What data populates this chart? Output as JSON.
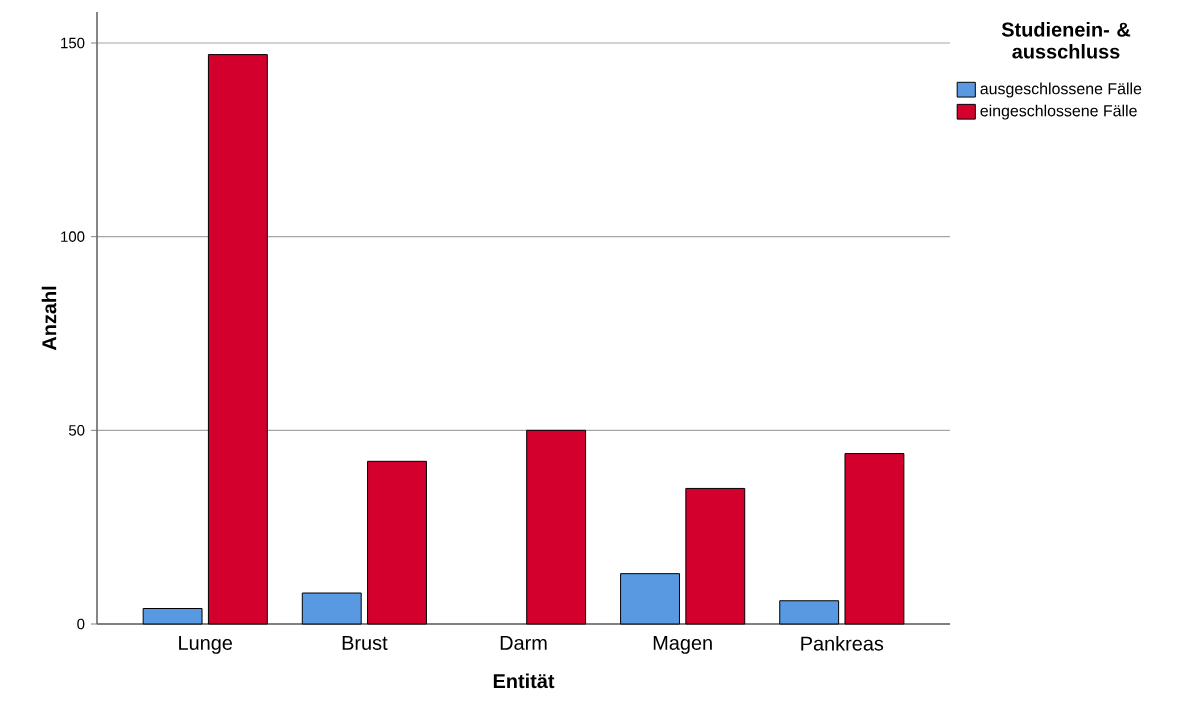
{
  "chart_data": {
    "type": "bar",
    "xlabel": "Entität",
    "ylabel": "Anzahl",
    "legend_title": "Studienein- & ausschluss",
    "categories": [
      "Lunge",
      "Brust",
      "Darm",
      "Magen",
      "Pankreas"
    ],
    "series": [
      {
        "name": "ausgeschlossene Fälle",
        "color": "#5899e2",
        "values": [
          4,
          8,
          null,
          13,
          6
        ]
      },
      {
        "name": "eingeschlossene Fälle",
        "color": "#d3002d",
        "values": [
          147,
          42,
          50,
          35,
          44
        ]
      }
    ],
    "ylim": [
      0,
      158
    ],
    "yticks": [
      0,
      50,
      100,
      150
    ],
    "grid": "y",
    "legend": "top right"
  }
}
